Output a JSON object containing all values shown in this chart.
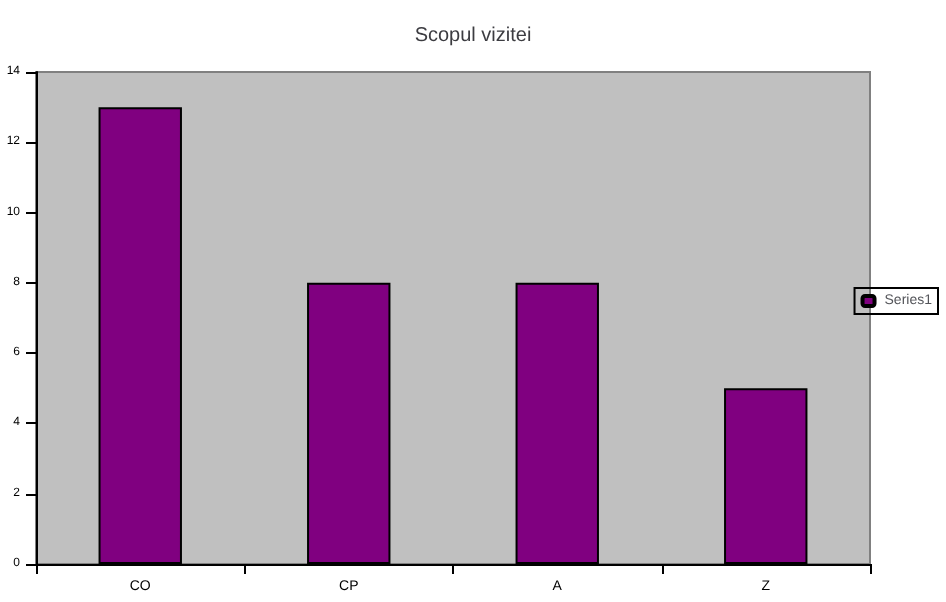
{
  "chart_data": {
    "type": "bar",
    "title": "Scopul vizitei",
    "categories": [
      "CO",
      "CP",
      "A",
      "Z"
    ],
    "series": [
      {
        "name": "Series1",
        "color": "#800080",
        "values": [
          13,
          8,
          8,
          5
        ]
      }
    ],
    "ylim": [
      0,
      14
    ],
    "yticks": [
      0,
      2,
      4,
      6,
      8,
      10,
      12,
      14
    ],
    "grid": false,
    "legend": "right"
  }
}
